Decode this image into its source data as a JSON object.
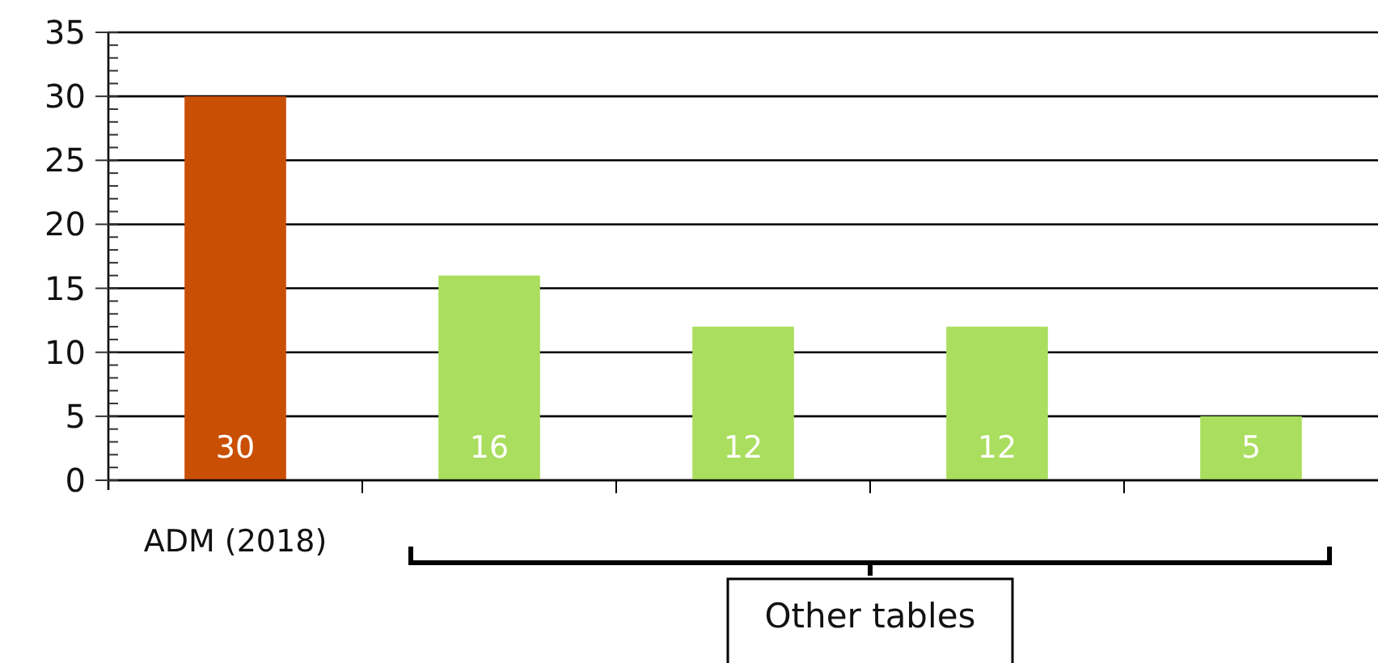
{
  "chart_data": {
    "type": "bar",
    "categories": [
      "ADM (2018)",
      null,
      null,
      null,
      null
    ],
    "values": [
      30,
      16,
      12,
      12,
      5
    ],
    "colors": [
      "#c94f05",
      "#aade5e",
      "#aade5e",
      "#aade5e",
      "#aade5e"
    ],
    "ylim": [
      0,
      35
    ],
    "yticks": [
      0,
      {
        "value": 1,
        "label": null
      },
      {
        "value": 2,
        "label": null
      },
      {
        "value": 3,
        "label": null
      },
      {
        "value": 4,
        "label": null
      },
      5,
      {
        "value": 6,
        "label": null
      },
      {
        "value": 7,
        "label": null
      },
      {
        "value": 8,
        "label": null
      },
      {
        "value": 9,
        "label": null
      },
      10,
      {
        "value": 11,
        "label": null
      },
      {
        "value": 12,
        "label": null
      },
      {
        "value": 13,
        "label": null
      },
      {
        "value": 14,
        "label": null
      },
      15,
      {
        "value": 16,
        "label": null
      },
      {
        "value": 17,
        "label": null
      },
      {
        "value": 18,
        "label": null
      },
      {
        "value": 19,
        "label": null
      },
      20,
      {
        "value": 21,
        "label": null
      },
      {
        "value": 22,
        "label": null
      },
      {
        "value": 23,
        "label": null
      },
      {
        "value": 24,
        "label": null
      },
      25,
      {
        "value": 26,
        "label": null
      },
      {
        "value": 27,
        "label": null
      },
      {
        "value": 28,
        "label": null
      },
      {
        "value": 29,
        "label": null
      },
      30,
      {
        "value": 31,
        "label": null
      },
      {
        "value": 32,
        "label": null
      },
      {
        "value": 33,
        "label": null
      },
      {
        "value": 34,
        "label": null
      },
      35
    ],
    "grid": "y",
    "data_labels": true,
    "annotations": [
      "Other tables"
    ]
  }
}
